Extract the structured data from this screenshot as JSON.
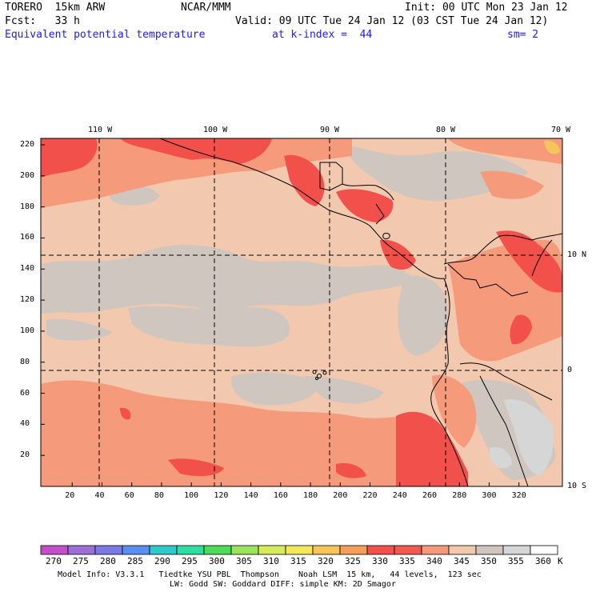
{
  "header": {
    "line1_left": "TORERO  15km ARW",
    "line1_mid": "NCAR/MMM",
    "line1_right": "Init: 00 UTC Mon 23 Jan 12",
    "line2_left": "Fcst:   33 h",
    "line2_right": "Valid: 09 UTC Tue 24 Jan 12 (03 CST Tue 24 Jan 12)",
    "line3_field": "Equivalent potential temperature",
    "line3_level": "at k-index =  44",
    "line3_sm": "sm= 2"
  },
  "map": {
    "lon_labels": [
      "110 W",
      "100 W",
      "90 W",
      "80 W",
      "70 W"
    ],
    "lat_labels": [
      "10 N",
      "0",
      "10 S"
    ],
    "y_ticks": [
      "220",
      "200",
      "180",
      "160",
      "140",
      "120",
      "100",
      "80",
      "60",
      "40",
      "20"
    ],
    "x_ticks": [
      "20",
      "40",
      "60",
      "80",
      "100",
      "120",
      "140",
      "160",
      "180",
      "200",
      "220",
      "240",
      "260",
      "280",
      "300",
      "320"
    ]
  },
  "colorbar": {
    "labels": [
      "270",
      "275",
      "280",
      "285",
      "290",
      "295",
      "300",
      "305",
      "310",
      "315",
      "320",
      "325",
      "330",
      "335",
      "340",
      "345",
      "350",
      "355",
      "360"
    ],
    "unit": "K",
    "colors": [
      "#c34fc9",
      "#9b6fd6",
      "#7a7ae6",
      "#5a8ef0",
      "#2ec9c9",
      "#2edea0",
      "#4cdc5a",
      "#9be35a",
      "#d6ec5a",
      "#f3e85a",
      "#f5c55a",
      "#f5a05a",
      "#f2504a",
      "#f05a50",
      "#f59a7a",
      "#f2c8ae",
      "#cfc6c0",
      "#d6d6d6",
      "#ffffff"
    ]
  },
  "footer": {
    "line1": "Model Info: V3.3.1   Tiedtke YSU PBL  Thompson    Noah LSM  15 km,   44 levels,  123 sec",
    "line2": "LW: Godd SW: Goddard DIFF: simple KM: 2D Smagor"
  }
}
